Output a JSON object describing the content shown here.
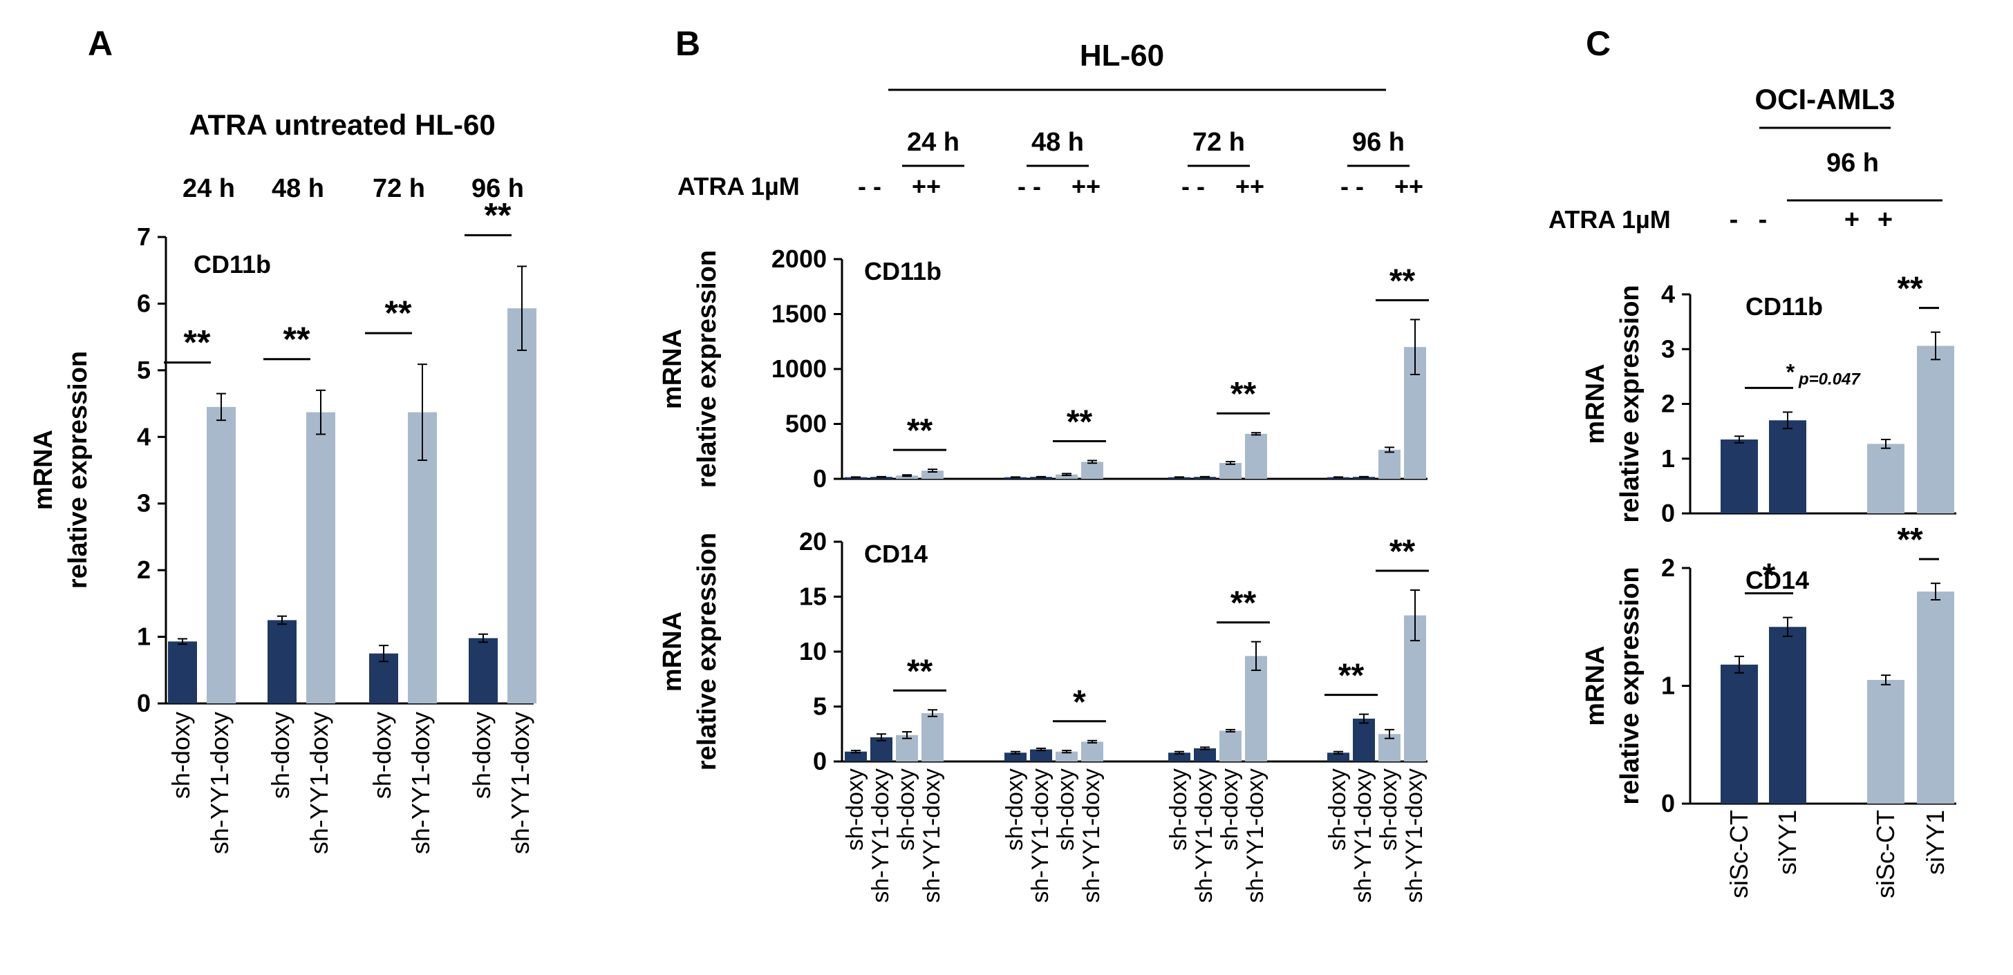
{
  "colors": {
    "dark": "#1f3864",
    "light": "#a9b9cc",
    "sig": "#ff0000"
  },
  "panel_letters": [
    "A",
    "B",
    "C"
  ],
  "chart_data": [
    {
      "id": "A",
      "type": "bar",
      "title": "ATRA untreated HL-60",
      "ylabel_line1": "mRNA",
      "ylabel_line2": "relative expression",
      "marker": "CD11b",
      "ylim": [
        0,
        7
      ],
      "yticks": [
        0,
        1,
        2,
        3,
        4,
        5,
        6,
        7
      ],
      "groups": [
        {
          "label": "24 h",
          "sig": "**",
          "bars": [
            {
              "name": "sh-doxy",
              "color": "dark",
              "value": 0.93,
              "err": 0.04
            },
            {
              "name": "sh-YY1-doxy",
              "color": "light",
              "value": 4.45,
              "err": 0.2
            }
          ]
        },
        {
          "label": "48 h",
          "sig": "**",
          "bars": [
            {
              "name": "sh-doxy",
              "color": "dark",
              "value": 1.25,
              "err": 0.06
            },
            {
              "name": "sh-YY1-doxy",
              "color": "light",
              "value": 4.37,
              "err": 0.33
            }
          ]
        },
        {
          "label": "72 h",
          "sig": "**",
          "bars": [
            {
              "name": "sh-doxy",
              "color": "dark",
              "value": 0.75,
              "err": 0.12
            },
            {
              "name": "sh-YY1-doxy",
              "color": "light",
              "value": 4.37,
              "err": 0.72
            }
          ]
        },
        {
          "label": "96 h",
          "sig": "**",
          "bars": [
            {
              "name": "sh-doxy",
              "color": "dark",
              "value": 0.98,
              "err": 0.06
            },
            {
              "name": "sh-YY1-doxy",
              "color": "light",
              "value": 5.93,
              "err": 0.63
            }
          ]
        }
      ]
    },
    {
      "id": "B",
      "type": "bar",
      "title": "HL-60",
      "treatment_label": "ATRA 1µM",
      "treatment_marks": [
        "- -",
        "++"
      ],
      "group_labels": [
        "24 h",
        "48 h",
        "72 h",
        "96 h"
      ],
      "bar_labels": [
        "sh-doxy",
        "sh-YY1-doxy",
        "sh-doxy",
        "sh-YY1-doxy"
      ],
      "bar_colors": [
        "dark",
        "dark",
        "light",
        "light"
      ],
      "subplots": [
        {
          "marker": "CD11b",
          "ylabel_line1": "mRNA",
          "ylabel_line2": "relative expression",
          "ylim": [
            0,
            2000
          ],
          "yticks": [
            0,
            500,
            1000,
            1500,
            2000
          ],
          "groups": [
            {
              "values": [
                15,
                18,
                30,
                75
              ],
              "errs": [
                2,
                2,
                6,
                12
              ],
              "sig": "**"
            },
            {
              "values": [
                15,
                18,
                40,
                155
              ],
              "errs": [
                2,
                2,
                8,
                12
              ],
              "sig": "**"
            },
            {
              "values": [
                15,
                18,
                145,
                410
              ],
              "errs": [
                2,
                2,
                12,
                10
              ],
              "sig": "**"
            },
            {
              "values": [
                15,
                18,
                265,
                1200
              ],
              "errs": [
                2,
                2,
                22,
                250
              ],
              "sig": "**"
            }
          ]
        },
        {
          "marker": "CD14",
          "ylabel_line1": "mRNA",
          "ylabel_line2": "relative expression",
          "ylim": [
            0,
            20
          ],
          "yticks": [
            0,
            5,
            10,
            15,
            20
          ],
          "groups": [
            {
              "values": [
                0.9,
                2.2,
                2.4,
                4.4
              ],
              "errs": [
                0.1,
                0.3,
                0.3,
                0.3
              ],
              "sig": "**"
            },
            {
              "values": [
                0.8,
                1.1,
                0.9,
                1.8
              ],
              "errs": [
                0.1,
                0.1,
                0.1,
                0.1
              ],
              "sig": "*"
            },
            {
              "values": [
                0.8,
                1.2,
                2.8,
                9.6
              ],
              "errs": [
                0.1,
                0.1,
                0.1,
                1.3
              ],
              "sig": "**"
            },
            {
              "values": [
                0.8,
                3.9,
                2.5,
                13.3
              ],
              "errs": [
                0.1,
                0.4,
                0.4,
                2.3
              ],
              "sig": "**",
              "sig2": "**"
            }
          ]
        }
      ]
    },
    {
      "id": "C",
      "type": "bar",
      "title": "OCI-AML3",
      "time_label": "96 h",
      "treatment_label": "ATRA 1µM",
      "treatment_marks": [
        "-",
        "-",
        "+",
        "+"
      ],
      "categories": [
        "siSc-CT",
        "siYY1",
        "siSc-CT",
        "siYY1"
      ],
      "bar_colors": [
        "dark",
        "dark",
        "light",
        "light"
      ],
      "subplots": [
        {
          "marker": "CD11b",
          "ylabel_line1": "mRNA",
          "ylabel_line2": "relative expression",
          "ylim": [
            0,
            4
          ],
          "yticks": [
            0,
            1,
            2,
            3,
            4
          ],
          "values": [
            1.35,
            1.7,
            1.27,
            3.06
          ],
          "errs": [
            0.06,
            0.15,
            0.08,
            0.25
          ],
          "sig_untreated": "*",
          "p_text": "p=0.047",
          "sig_treated": "**"
        },
        {
          "marker": "CD14",
          "ylabel_line1": "mRNA",
          "ylabel_line2": "relative expression",
          "ylim": [
            0,
            2
          ],
          "yticks": [
            0,
            1,
            2
          ],
          "values": [
            1.18,
            1.5,
            1.05,
            1.8
          ],
          "errs": [
            0.07,
            0.08,
            0.04,
            0.07
          ],
          "sig_untreated": "*",
          "sig_treated": "**"
        }
      ]
    }
  ]
}
